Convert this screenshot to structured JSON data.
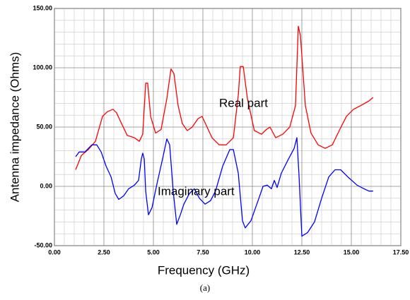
{
  "chart_data": {
    "type": "line",
    "xlabel": "Frequency (GHz)",
    "ylabel": "Antenna impedance (Ohms)",
    "caption": "(a)",
    "xlim": [
      0,
      17.5
    ],
    "ylim": [
      -50,
      150
    ],
    "xticks": [
      {
        "value": 0,
        "label": "0.00"
      },
      {
        "value": 2.5,
        "label": "2.50"
      },
      {
        "value": 5,
        "label": "5.00"
      },
      {
        "value": 7.5,
        "label": "7.50"
      },
      {
        "value": 10,
        "label": "10.00"
      },
      {
        "value": 12.5,
        "label": "12.50"
      },
      {
        "value": 15,
        "label": "15.00"
      },
      {
        "value": 17.5,
        "label": "17.50"
      }
    ],
    "yticks": [
      {
        "value": -50,
        "label": "-50.00"
      },
      {
        "value": 0,
        "label": "0.00"
      },
      {
        "value": 50,
        "label": "50.00"
      },
      {
        "value": 100,
        "label": "100.00"
      },
      {
        "value": 150,
        "label": "150.00"
      }
    ],
    "grid": true,
    "series": [
      {
        "name": "Real part",
        "color": "#ff0000",
        "x": [
          1.07,
          1.36,
          1.71,
          2.07,
          2.43,
          2.68,
          2.96,
          3.14,
          3.39,
          3.68,
          4.04,
          4.29,
          4.46,
          4.61,
          4.71,
          4.86,
          5.11,
          5.39,
          5.68,
          5.89,
          6.04,
          6.25,
          6.46,
          6.71,
          6.96,
          7.25,
          7.46,
          7.71,
          7.96,
          8.32,
          8.68,
          9.04,
          9.29,
          9.39,
          9.54,
          9.75,
          10.1,
          10.46,
          10.71,
          10.89,
          11.18,
          11.54,
          11.89,
          12.18,
          12.32,
          12.43,
          12.68,
          12.96,
          13.32,
          13.68,
          14.04,
          14.39,
          14.75,
          15.11,
          15.46,
          15.89,
          16.1
        ],
        "values": [
          14,
          26,
          31,
          38,
          59,
          63,
          65,
          62,
          53,
          43,
          41,
          38,
          44,
          87,
          87,
          59,
          45,
          48,
          74,
          99,
          95,
          68,
          53,
          47,
          50,
          57,
          59,
          50,
          41,
          35,
          35,
          41,
          77,
          101,
          101,
          74,
          47,
          44,
          48,
          50,
          41,
          44,
          50,
          68,
          135,
          127,
          68,
          45,
          35,
          32,
          35,
          47,
          59,
          65,
          68,
          72,
          75
        ]
      },
      {
        "name": "Imaginary part",
        "color": "#0000ff",
        "x": [
          1.07,
          1.25,
          1.54,
          1.89,
          2.14,
          2.36,
          2.61,
          2.86,
          3.07,
          3.25,
          3.5,
          3.75,
          4.04,
          4.25,
          4.39,
          4.46,
          4.54,
          4.61,
          4.75,
          4.93,
          5.18,
          5.46,
          5.68,
          5.82,
          6.0,
          6.18,
          6.36,
          6.54,
          6.82,
          7.07,
          7.32,
          7.61,
          7.89,
          8.14,
          8.5,
          8.86,
          9.04,
          9.29,
          9.5,
          9.64,
          9.93,
          10.29,
          10.54,
          10.75,
          10.96,
          11.11,
          11.25,
          11.46,
          11.82,
          12.11,
          12.25,
          12.36,
          12.5,
          12.79,
          13.14,
          13.5,
          13.86,
          14.18,
          14.46,
          14.82,
          15.29,
          15.64,
          15.89,
          16.1
        ],
        "values": [
          25,
          29,
          29,
          35,
          35,
          29,
          17,
          8,
          -6,
          -11,
          -8,
          -2,
          1,
          5,
          23,
          28,
          23,
          -4,
          -24,
          -18,
          2,
          23,
          40,
          35,
          -4,
          -32,
          -24,
          -15,
          -6,
          -2,
          -10,
          -15,
          -12,
          -4,
          17,
          31,
          31,
          11,
          -29,
          -35,
          -29,
          -12,
          0,
          1,
          -2,
          5,
          -1,
          11,
          23,
          32,
          41,
          8,
          -42,
          -39,
          -30,
          -10,
          8,
          14,
          14,
          8,
          1,
          -2,
          -4,
          -4
        ]
      }
    ]
  }
}
